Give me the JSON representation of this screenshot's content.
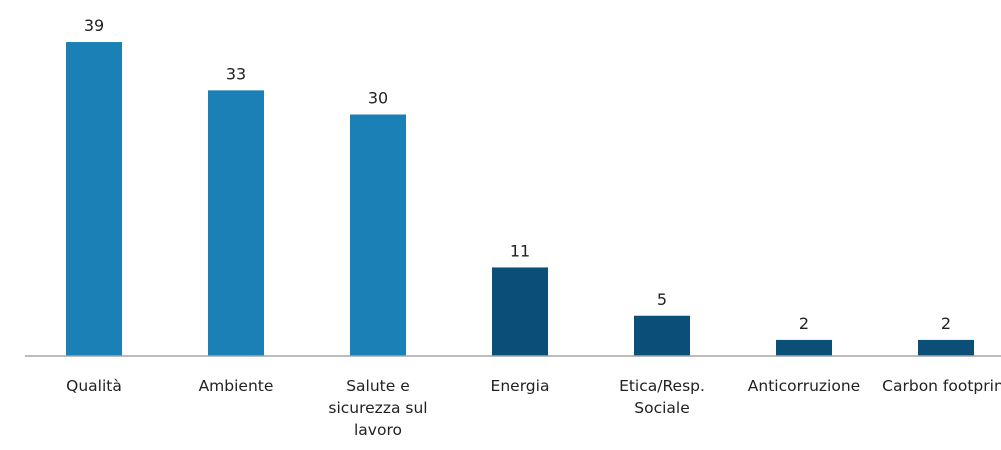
{
  "chart_data": {
    "type": "bar",
    "categories": [
      "Qualità",
      "Ambiente",
      "Salute e sicurezza sul lavoro",
      "Energia",
      "Etica/Resp. Sociale",
      "Anticorruzione",
      "Carbon footprint"
    ],
    "values": [
      39,
      33,
      30,
      11,
      5,
      2,
      2
    ],
    "colors": [
      "#1a80b6",
      "#1a80b6",
      "#1a80b6",
      "#0b4f79",
      "#0b4f79",
      "#0b4f79",
      "#0b4f79"
    ],
    "ylim": [
      0,
      40
    ]
  }
}
